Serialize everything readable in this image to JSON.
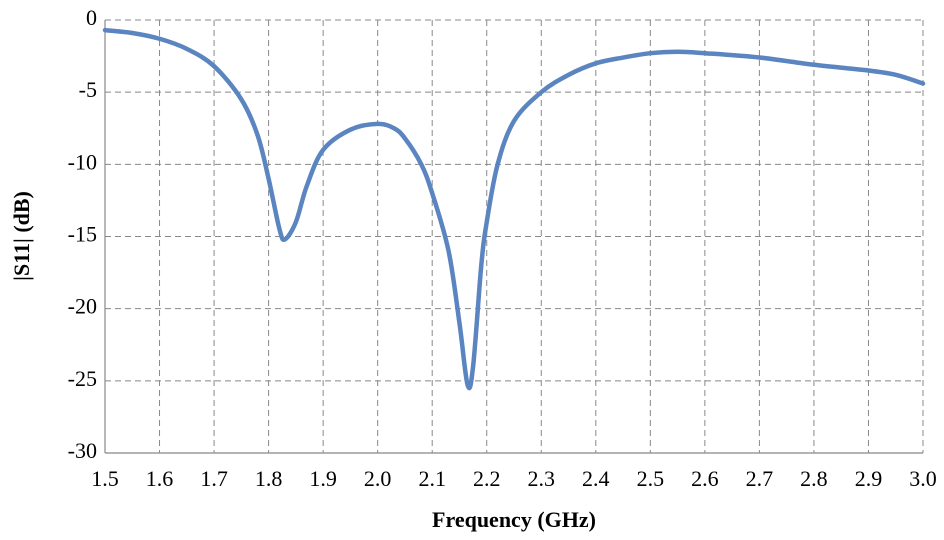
{
  "chart_data": {
    "type": "line",
    "x_label": "Frequency (GHz)",
    "y_label": "|S11| (dB)",
    "x": [
      1.5,
      1.55,
      1.6,
      1.65,
      1.7,
      1.75,
      1.78,
      1.8,
      1.82,
      1.83,
      1.85,
      1.87,
      1.9,
      1.95,
      2.0,
      2.03,
      2.05,
      2.08,
      2.1,
      2.13,
      2.15,
      2.165,
      2.175,
      2.19,
      2.2,
      2.22,
      2.25,
      2.3,
      2.35,
      2.4,
      2.45,
      2.5,
      2.55,
      2.6,
      2.7,
      2.8,
      2.9,
      2.95,
      3.0
    ],
    "series": [
      {
        "color": "#5b85c0",
        "values": [
          -0.7,
          -0.9,
          -1.3,
          -2.0,
          -3.2,
          -5.5,
          -8,
          -11,
          -14.5,
          -15.2,
          -14,
          -11.5,
          -9.0,
          -7.6,
          -7.2,
          -7.5,
          -8.2,
          -10,
          -12,
          -16,
          -21,
          -25.3,
          -24,
          -17,
          -14,
          -10,
          -7,
          -5,
          -3.8,
          -3.0,
          -2.6,
          -2.3,
          -2.2,
          -2.3,
          -2.6,
          -3.1,
          -3.5,
          -3.8,
          -4.4
        ]
      }
    ],
    "xlim": [
      1.5,
      3.0
    ],
    "ylim": [
      -30,
      0
    ],
    "xticks": [
      1.5,
      1.6,
      1.7,
      1.8,
      1.9,
      {
        "value": 2,
        "label": "2.0"
      },
      2.1,
      2.2,
      2.3,
      2.4,
      2.5,
      2.6,
      2.7,
      2.8,
      2.9,
      {
        "value": 3,
        "label": "3.0"
      }
    ],
    "yticks": [
      0,
      -5,
      -10,
      -15,
      -20,
      -25,
      -30
    ],
    "grid": true
  }
}
